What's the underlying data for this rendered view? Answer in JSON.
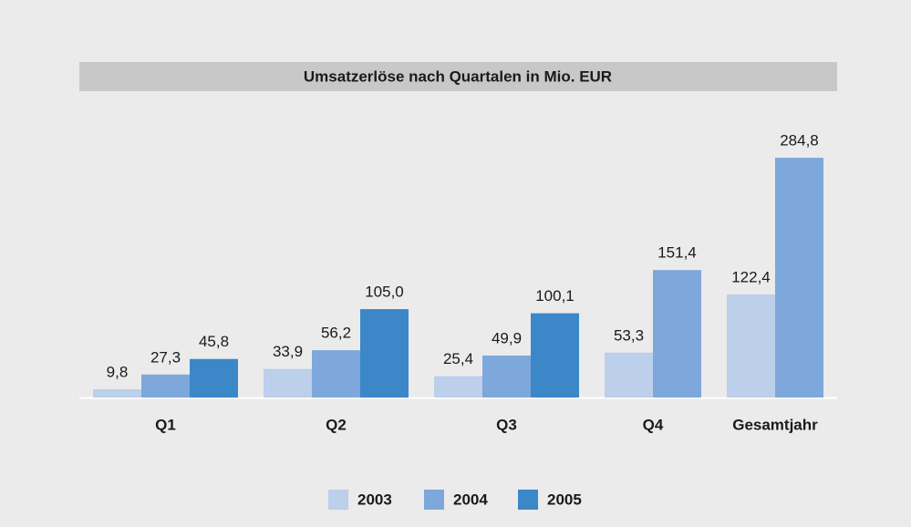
{
  "chart_data": {
    "type": "bar",
    "title": "Umsatzerlöse nach Quartalen in Mio. EUR",
    "categories": [
      "Q1",
      "Q2",
      "Q3",
      "Q4",
      "Gesamtjahr"
    ],
    "series": [
      {
        "name": "2003",
        "color": "#bccfeb",
        "values": [
          9.8,
          33.9,
          25.4,
          53.3,
          122.4
        ],
        "value_labels": [
          "9,8",
          "33,9",
          "25,4",
          "53,3",
          "122,4"
        ]
      },
      {
        "name": "2004",
        "color": "#7ea7db",
        "values": [
          27.3,
          56.2,
          49.9,
          151.4,
          284.8
        ],
        "value_labels": [
          "27,3",
          "56,2",
          "49,9",
          "151,4",
          "284,8"
        ]
      },
      {
        "name": "2005",
        "color": "#3b87c8",
        "values": [
          45.8,
          105.0,
          100.1,
          null,
          null
        ],
        "value_labels": [
          "45,8",
          "105,0",
          "100,1",
          null,
          null
        ]
      }
    ],
    "ylim": [
      0,
      300
    ],
    "legend": "bottom"
  }
}
